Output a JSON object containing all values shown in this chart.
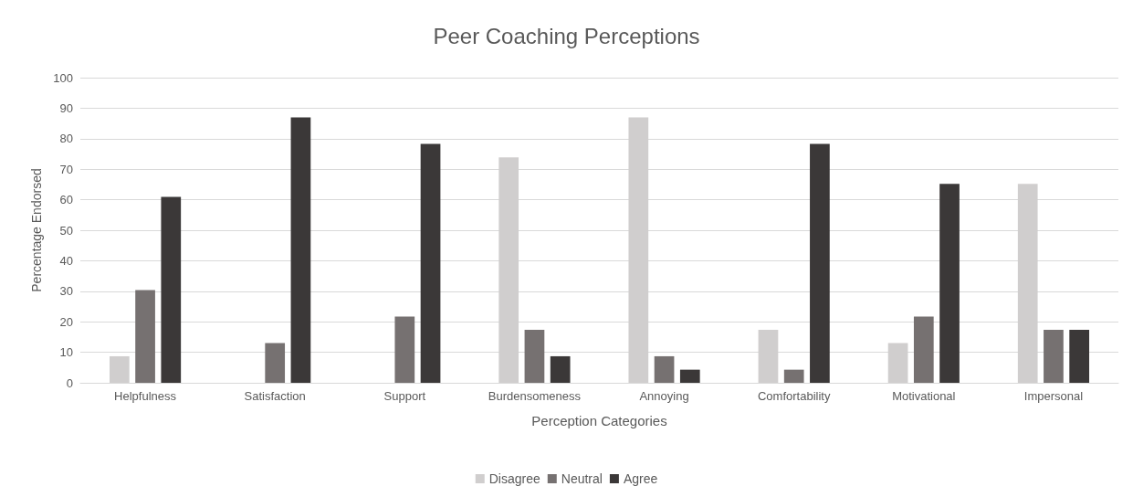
{
  "chart_data": {
    "type": "bar",
    "title": "Peer Coaching Perceptions",
    "xlabel": "Perception Categories",
    "ylabel": "Percentage Endorsed",
    "categories": [
      "Helpfulness",
      "Satisfaction",
      "Support",
      "Burdensomeness",
      "Annoying",
      "Comfortability",
      "Motivational",
      "Impersonal"
    ],
    "series": [
      {
        "name": "Disagree",
        "color": "#d0cece",
        "values": [
          8.7,
          0,
          0,
          73.9,
          87,
          17.4,
          13,
          65.2
        ]
      },
      {
        "name": "Neutral",
        "color": "#767171",
        "values": [
          30.4,
          13,
          21.7,
          17.4,
          8.7,
          4.3,
          21.7,
          17.4
        ]
      },
      {
        "name": "Agree",
        "color": "#3b3838",
        "values": [
          60.9,
          87,
          78.3,
          8.7,
          4.3,
          78.3,
          65.2,
          17.4
        ]
      }
    ],
    "ylim": [
      0,
      100
    ],
    "yticks": [
      0,
      10,
      20,
      30,
      40,
      50,
      60,
      70,
      80,
      90,
      100
    ],
    "grid": "y",
    "legend": "bottom"
  }
}
